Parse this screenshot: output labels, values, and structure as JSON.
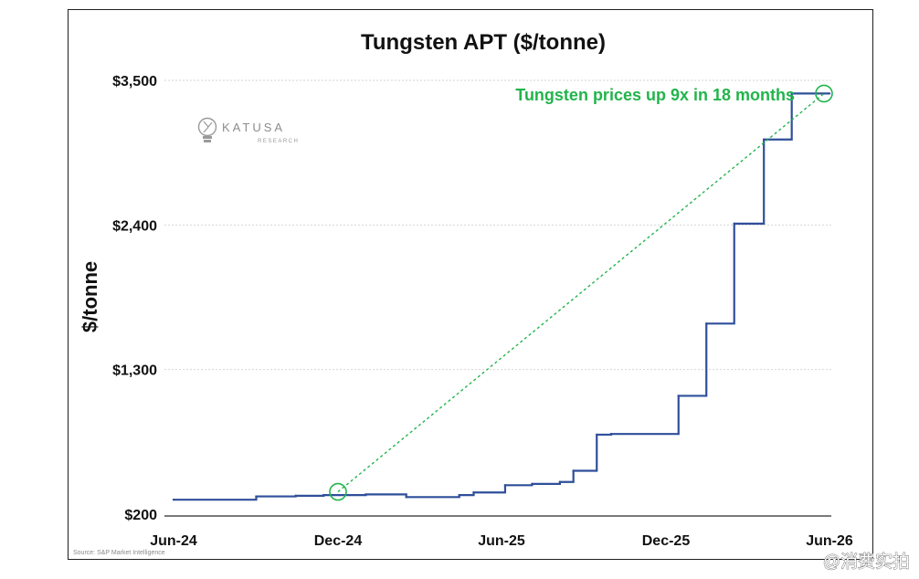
{
  "chart_data": {
    "type": "line",
    "step": true,
    "title": "Tungsten APT ($/tonne)",
    "ylabel": "$/tonne",
    "xlabel": "",
    "ylim": [
      200,
      3500
    ],
    "y_ticks": [
      {
        "value": 200,
        "label": "$200"
      },
      {
        "value": 1300,
        "label": "$1,300"
      },
      {
        "value": 2400,
        "label": "$2,400"
      },
      {
        "value": 3500,
        "label": "$3,500"
      }
    ],
    "x_range": [
      "2024-06-01",
      "2026-06-01"
    ],
    "x_ticks": [
      {
        "date": "2024-06-01",
        "label": "Jun-24"
      },
      {
        "date": "2024-12-01",
        "label": "Dec-24"
      },
      {
        "date": "2025-06-01",
        "label": "Jun-25"
      },
      {
        "date": "2025-12-01",
        "label": "Dec-25"
      },
      {
        "date": "2026-06-01",
        "label": "Jun-26"
      }
    ],
    "grid": true,
    "line_color": "#2f4f9a",
    "series": [
      {
        "points": [
          {
            "date": "2024-06-01",
            "value": 310
          },
          {
            "date": "2024-09-01",
            "value": 335
          },
          {
            "date": "2024-10-15",
            "value": 340
          },
          {
            "date": "2024-11-15",
            "value": 345
          },
          {
            "date": "2025-01-01",
            "value": 350
          },
          {
            "date": "2025-02-15",
            "value": 330
          },
          {
            "date": "2025-04-15",
            "value": 345
          },
          {
            "date": "2025-05-01",
            "value": 365
          },
          {
            "date": "2025-06-05",
            "value": 420
          },
          {
            "date": "2025-07-05",
            "value": 430
          },
          {
            "date": "2025-08-05",
            "value": 445
          },
          {
            "date": "2025-08-20",
            "value": 530
          },
          {
            "date": "2025-09-15",
            "value": 805
          },
          {
            "date": "2025-10-01",
            "value": 810
          },
          {
            "date": "2025-12-15",
            "value": 1100
          },
          {
            "date": "2026-01-15",
            "value": 1650
          },
          {
            "date": "2026-02-15",
            "value": 2410
          },
          {
            "date": "2026-03-20",
            "value": 3050
          },
          {
            "date": "2026-04-20",
            "value": 3400
          },
          {
            "date": "2026-06-01",
            "value": 3400
          }
        ]
      }
    ],
    "annotation": {
      "text": "Tungsten prices up 9x in 18 months",
      "color": "#22b44b",
      "start": {
        "date": "2024-12-01",
        "value": 370
      },
      "end": {
        "date": "2026-06-01",
        "value": 3400
      }
    },
    "source": "Source: S&P Market Intelligence"
  },
  "logo": {
    "name": "KATUSA",
    "subtitle": "RESEARCH"
  },
  "watermark": "@消费实拍"
}
